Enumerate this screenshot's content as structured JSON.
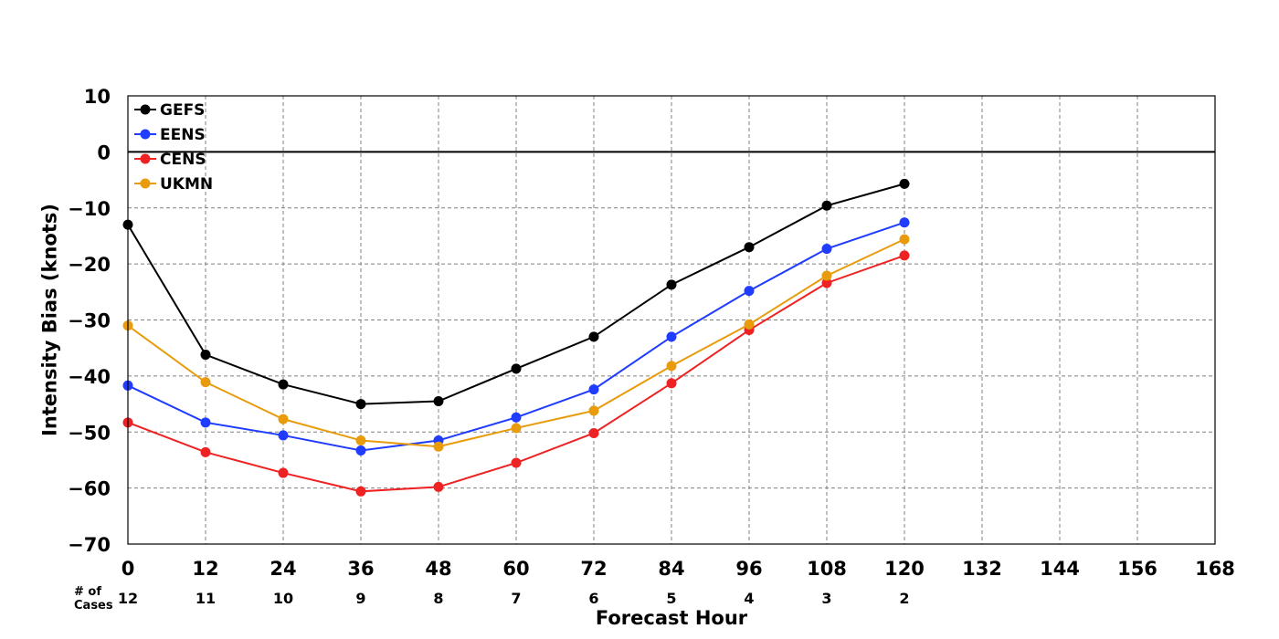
{
  "chart_data": {
    "type": "line",
    "title": "",
    "xlabel": "Forecast Hour",
    "ylabel": "Intensity Bias (knots)",
    "xlim": [
      0,
      168
    ],
    "ylim": [
      -70,
      10
    ],
    "x_ticks": [
      0,
      12,
      24,
      36,
      48,
      60,
      72,
      84,
      96,
      108,
      120,
      132,
      144,
      156,
      168
    ],
    "y_ticks": [
      10,
      0,
      -10,
      -20,
      -30,
      -40,
      -50,
      -60,
      -70
    ],
    "x_tick_labels": [
      "0",
      "12",
      "24",
      "36",
      "48",
      "60",
      "72",
      "84",
      "96",
      "108",
      "120",
      "132",
      "144",
      "156",
      "168"
    ],
    "y_tick_labels": [
      "10",
      "0",
      "−10",
      "−20",
      "−30",
      "−40",
      "−50",
      "−60",
      "−70"
    ],
    "grid": true,
    "zero_line": true,
    "legend_position": "top-left",
    "x": [
      0,
      12,
      24,
      36,
      48,
      60,
      72,
      84,
      96,
      108,
      120
    ],
    "series": [
      {
        "name": "GEFS",
        "color": "#000000",
        "values": [
          -13,
          -36.2,
          -41.5,
          -45,
          -44.5,
          -38.7,
          -33,
          -23.7,
          -17,
          -9.6,
          -5.7
        ]
      },
      {
        "name": "EENS",
        "color": "#1f3cff",
        "values": [
          -41.7,
          -48.3,
          -50.6,
          -53.3,
          -51.5,
          -47.4,
          -42.4,
          -33,
          -24.8,
          -17.3,
          -12.6
        ]
      },
      {
        "name": "CENS",
        "color": "#ee2222",
        "values": [
          -48.3,
          -53.6,
          -57.3,
          -60.6,
          -59.8,
          -55.5,
          -50.2,
          -41.3,
          -31.8,
          -23.4,
          -18.5
        ]
      },
      {
        "name": "UKMN",
        "color": "#e89c0c",
        "values": [
          -31,
          -41.1,
          -47.7,
          -51.5,
          -52.6,
          -49.3,
          -46.2,
          -38.2,
          -30.8,
          -22.1,
          -15.6
        ]
      }
    ],
    "cases_label": "# of\nCases",
    "cases": [
      "12",
      "11",
      "10",
      "9",
      "8",
      "7",
      "6",
      "5",
      "4",
      "3",
      "2"
    ]
  }
}
